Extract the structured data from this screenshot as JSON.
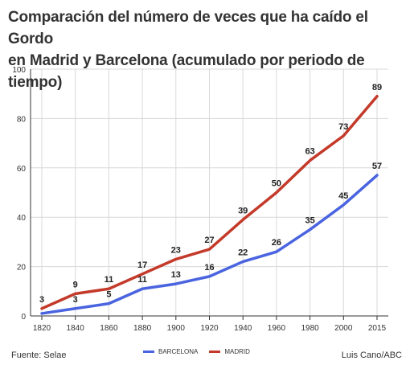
{
  "chart_title_line1": "Comparación del número de veces que ha caído el Gordo",
  "chart_title_line2": "en Madrid y Barcelona (acumulado por periodo de tiempo)",
  "footer": {
    "source": "Fuente: Selae",
    "credit": "Luis Cano/ABC"
  },
  "colors": {
    "barcelona": "#4a64e0",
    "madrid": "#c43a2a",
    "grid": "#d8d8d8",
    "axis": "#333333"
  },
  "chart_data": {
    "type": "line",
    "categories": [
      "1820",
      "1840",
      "1860",
      "1880",
      "1900",
      "1920",
      "1940",
      "1960",
      "1980",
      "2000",
      "2015"
    ],
    "series": [
      {
        "name": "BARCELONA",
        "values": [
          1,
          3,
          5,
          11,
          13,
          16,
          22,
          26,
          35,
          45,
          57
        ]
      },
      {
        "name": "MADRID",
        "values": [
          3,
          9,
          11,
          17,
          23,
          27,
          39,
          50,
          63,
          73,
          89
        ]
      }
    ],
    "labeled_values": {
      "BARCELONA": [
        null,
        3,
        5,
        11,
        13,
        16,
        22,
        26,
        35,
        45,
        57
      ],
      "MADRID": [
        3,
        9,
        11,
        17,
        23,
        27,
        39,
        50,
        63,
        73,
        89
      ]
    },
    "yticks": [
      "0",
      "20",
      "40",
      "60",
      "80",
      "100"
    ],
    "ylim": [
      0,
      100
    ],
    "grid": true,
    "legend_position": "bottom-center"
  }
}
